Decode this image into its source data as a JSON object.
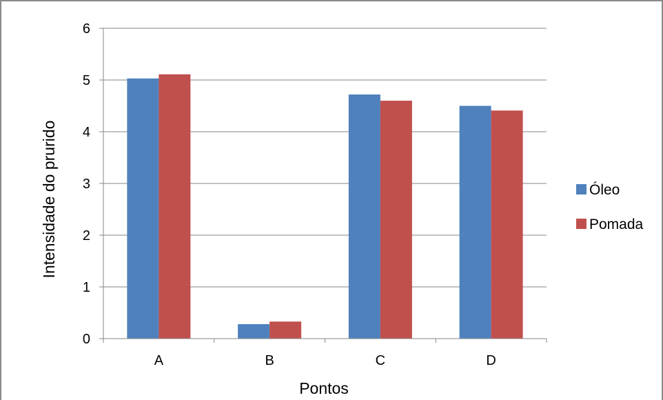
{
  "chart_data": {
    "type": "bar",
    "title": "",
    "xlabel": "Pontos",
    "ylabel": "Intensidade do prurido",
    "categories": [
      "A",
      "B",
      "C",
      "D"
    ],
    "series": [
      {
        "name": "Óleo",
        "color": "#4F81BD",
        "values": [
          5.03,
          0.28,
          4.72,
          4.5
        ]
      },
      {
        "name": "Pomada",
        "color": "#C0504D",
        "values": [
          5.11,
          0.33,
          4.6,
          4.41
        ]
      }
    ],
    "ylim": [
      0,
      6
    ],
    "yticks": [
      "0",
      "1",
      "2",
      "3",
      "4",
      "5",
      "6"
    ],
    "grid": true,
    "legend_position": "right"
  }
}
